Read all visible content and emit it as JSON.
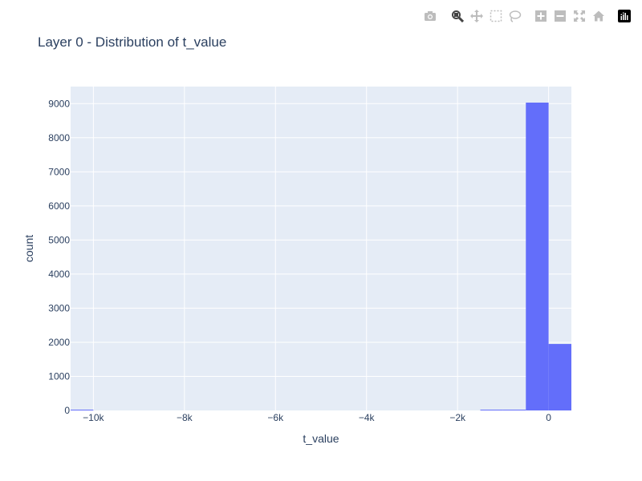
{
  "modebar": {
    "buttons": [
      {
        "name": "camera-icon",
        "title": "Download plot as a png"
      },
      {
        "name": "zoom-icon",
        "title": "Zoom"
      },
      {
        "name": "pan-icon",
        "title": "Pan"
      },
      {
        "name": "box-select-icon",
        "title": "Box Select"
      },
      {
        "name": "lasso-select-icon",
        "title": "Lasso Select"
      },
      {
        "name": "zoom-in-icon",
        "title": "Zoom in"
      },
      {
        "name": "zoom-out-icon",
        "title": "Zoom out"
      },
      {
        "name": "autoscale-icon",
        "title": "Autoscale"
      },
      {
        "name": "reset-axes-icon",
        "title": "Reset axes"
      },
      {
        "name": "plotly-logo-icon",
        "title": "Produced with Plotly"
      }
    ],
    "active_button": "zoom-icon",
    "icon_color": "#bdbdbd",
    "active_color": "#444444"
  },
  "chart_data": {
    "type": "bar",
    "title": "Layer 0 - Distribution of t_value",
    "xlabel": "t_value",
    "ylabel": "count",
    "bar_color": "#636efa",
    "plot_bgcolor": "#e5ecf6",
    "grid": true,
    "xlim": [
      -10500,
      500
    ],
    "ylim": [
      0,
      9500
    ],
    "x_ticks": [
      -10000,
      -8000,
      -6000,
      -4000,
      -2000,
      0
    ],
    "x_tick_labels": [
      "−10k",
      "−8k",
      "−6k",
      "−4k",
      "−2k",
      "0"
    ],
    "y_ticks": [
      0,
      1000,
      2000,
      3000,
      4000,
      5000,
      6000,
      7000,
      8000,
      9000
    ],
    "y_tick_labels": [
      "0",
      "1000",
      "2000",
      "3000",
      "4000",
      "5000",
      "6000",
      "7000",
      "8000",
      "9000"
    ],
    "bin_width": 500,
    "bins": [
      {
        "x0": -10500,
        "x1": -10000,
        "count": 3
      },
      {
        "x0": -1500,
        "x1": -1000,
        "count": 2
      },
      {
        "x0": -1000,
        "x1": -500,
        "count": 5
      },
      {
        "x0": -500,
        "x1": 0,
        "count": 9030
      },
      {
        "x0": 0,
        "x1": 500,
        "count": 1950
      }
    ]
  }
}
